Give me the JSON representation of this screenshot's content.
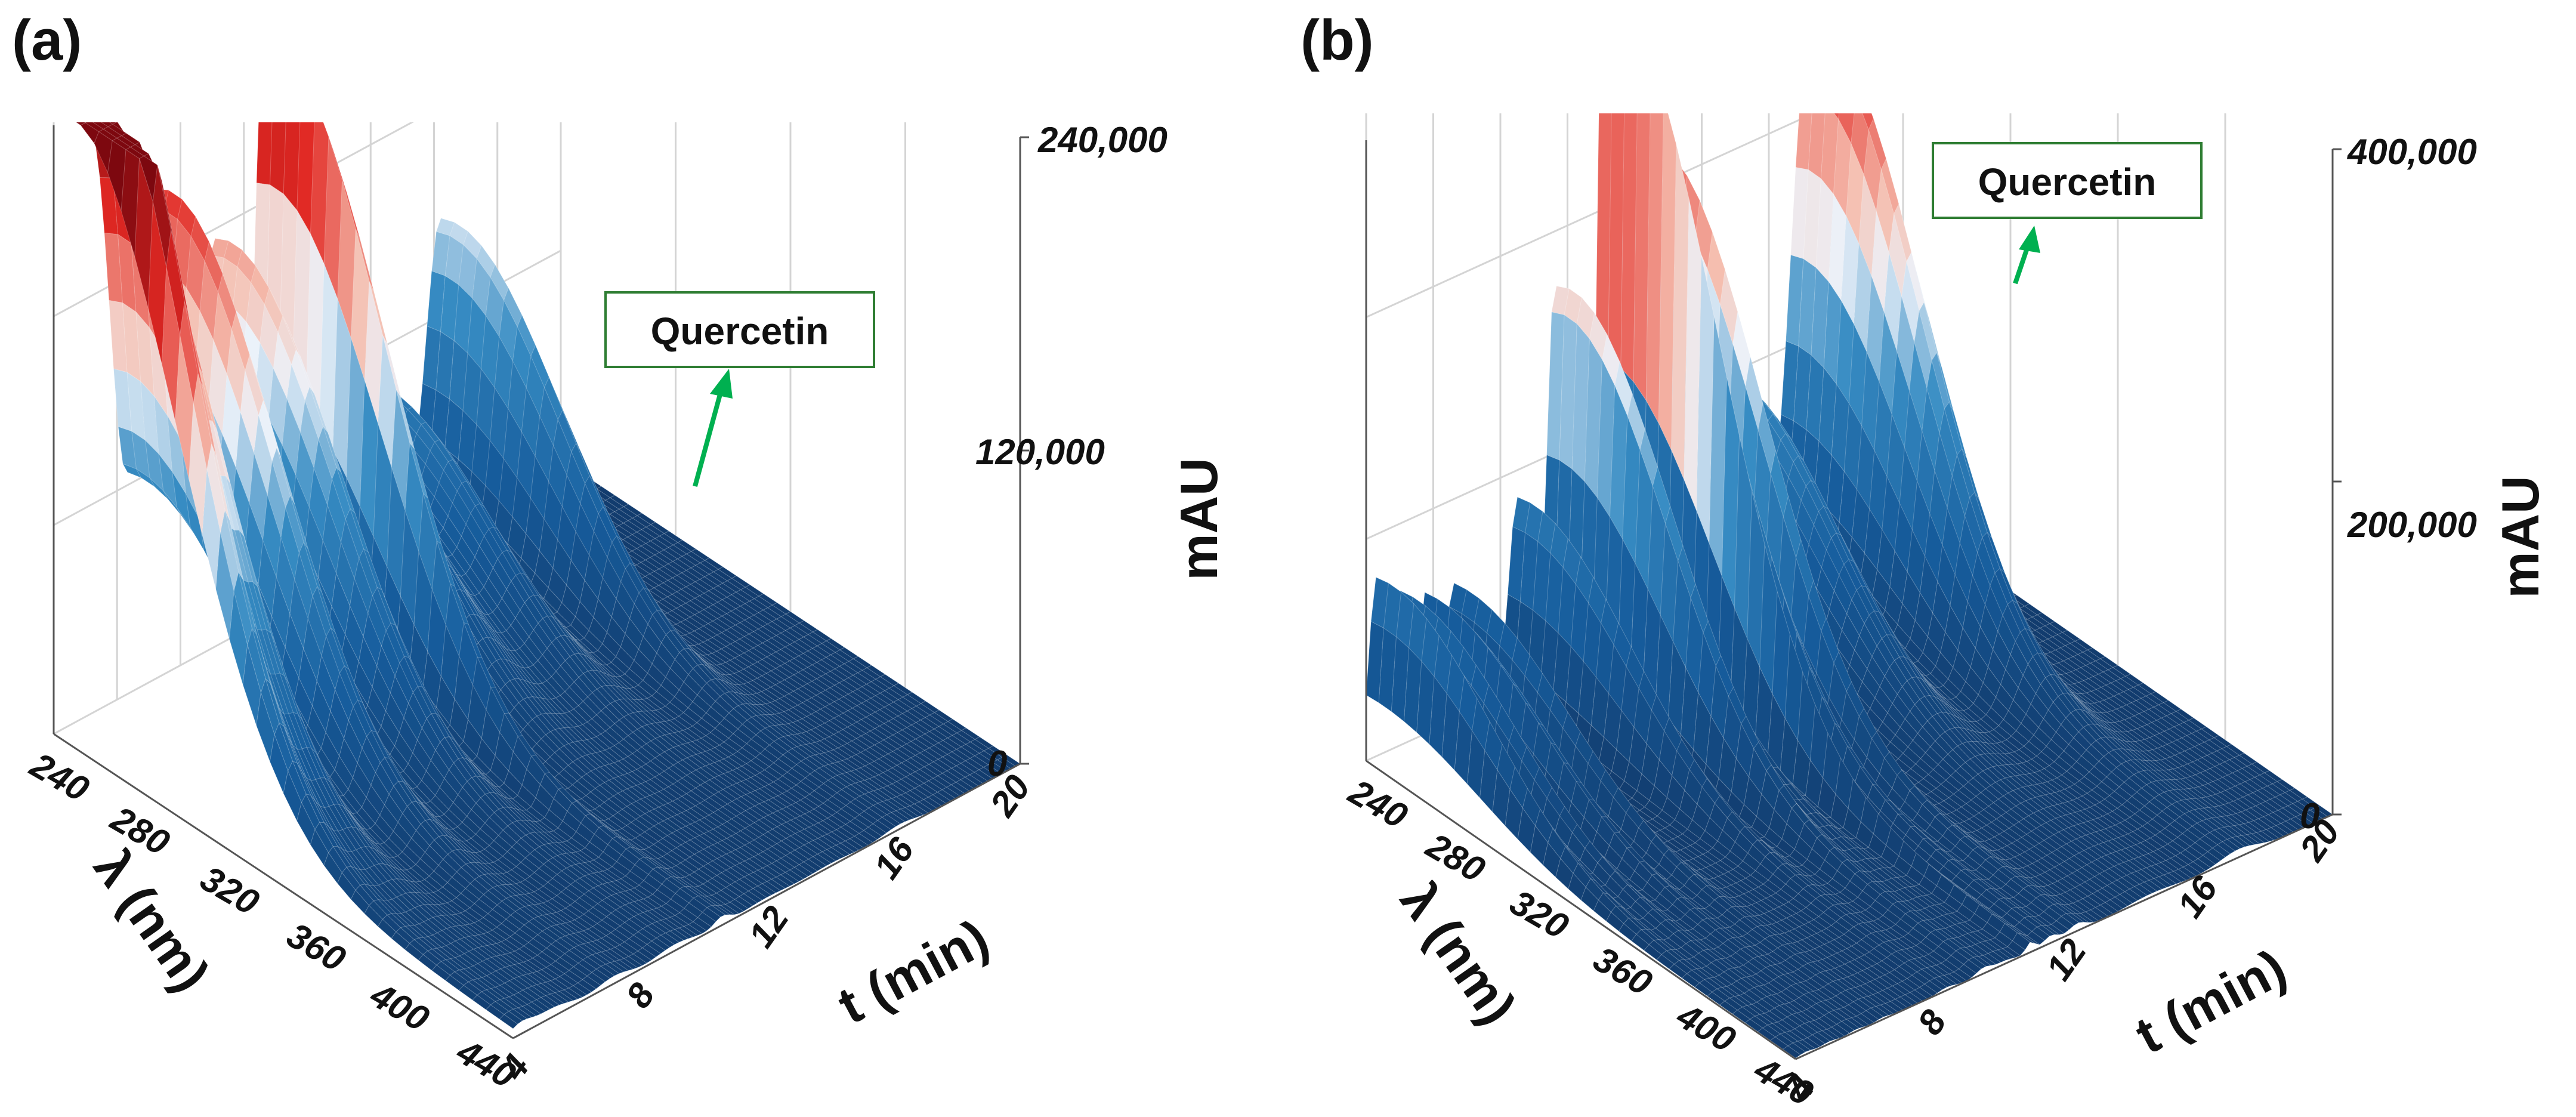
{
  "chart_data": [
    {
      "type": "surface",
      "panel": "(a)",
      "x_axis": {
        "label": "t (min)",
        "ticks": [
          "4",
          "8",
          "12",
          "16",
          "20"
        ],
        "range": [
          4,
          20
        ]
      },
      "y_axis": {
        "label": "λ (nm)",
        "ticks": [
          "240",
          "280",
          "320",
          "360",
          "400",
          "440"
        ],
        "range": [
          240,
          440
        ]
      },
      "z_axis": {
        "label": "mAU",
        "ticks": [
          "0",
          "120,000",
          "240,000"
        ],
        "range": [
          0,
          240000
        ]
      },
      "annotation": {
        "text": "Quercetin",
        "t": 16.2,
        "mAU": 120000
      },
      "peaks": [
        {
          "t": 4.2,
          "mAU": 240000,
          "w": 0.5
        },
        {
          "t": 5.2,
          "mAU": 225000,
          "w": 0.9
        },
        {
          "t": 7.2,
          "mAU": 190000,
          "w": 0.7
        },
        {
          "t": 9.1,
          "mAU": 160000,
          "w": 0.8
        },
        {
          "t": 10.6,
          "mAU": 215000,
          "w": 0.35
        },
        {
          "t": 12.0,
          "mAU": 85000,
          "w": 1.0
        },
        {
          "t": 14.0,
          "mAU": 70000,
          "w": 0.9
        },
        {
          "t": 16.2,
          "mAU": 120000,
          "w": 0.65
        }
      ],
      "wavelength_profile": {
        "center": 250,
        "width": 62
      }
    },
    {
      "type": "surface",
      "panel": "(b)",
      "x_axis": {
        "label": "t (min)",
        "ticks": [
          "4",
          "8",
          "12",
          "16",
          "20"
        ],
        "range": [
          4,
          20
        ]
      },
      "y_axis": {
        "label": "λ (nm)",
        "ticks": [
          "240",
          "280",
          "320",
          "360",
          "400",
          "440"
        ],
        "range": [
          240,
          440
        ]
      },
      "z_axis": {
        "label": "mAU",
        "ticks": [
          "0",
          "200,000",
          "400,000"
        ],
        "range": [
          0,
          400000
        ]
      },
      "annotation": {
        "text": "Quercetin",
        "t": 17.2,
        "mAU": 325000
      },
      "peaks": [
        {
          "t": 4.3,
          "mAU": 110000,
          "w": 0.3
        },
        {
          "t": 5.0,
          "mAU": 95000,
          "w": 0.3
        },
        {
          "t": 5.8,
          "mAU": 90000,
          "w": 0.3
        },
        {
          "t": 6.6,
          "mAU": 85000,
          "w": 0.3
        },
        {
          "t": 8.5,
          "mAU": 120000,
          "w": 0.35
        },
        {
          "t": 9.6,
          "mAU": 230000,
          "w": 0.3
        },
        {
          "t": 10.2,
          "mAU": 125000,
          "w": 0.4
        },
        {
          "t": 11.0,
          "mAU": 400000,
          "w": 0.18
        },
        {
          "t": 11.6,
          "mAU": 295000,
          "w": 0.3
        },
        {
          "t": 12.4,
          "mAU": 300000,
          "w": 0.35
        },
        {
          "t": 14.6,
          "mAU": 140000,
          "w": 0.9
        },
        {
          "t": 17.2,
          "mAU": 325000,
          "w": 0.75
        }
      ],
      "wavelength_profile": {
        "center": 250,
        "width": 62
      }
    }
  ]
}
